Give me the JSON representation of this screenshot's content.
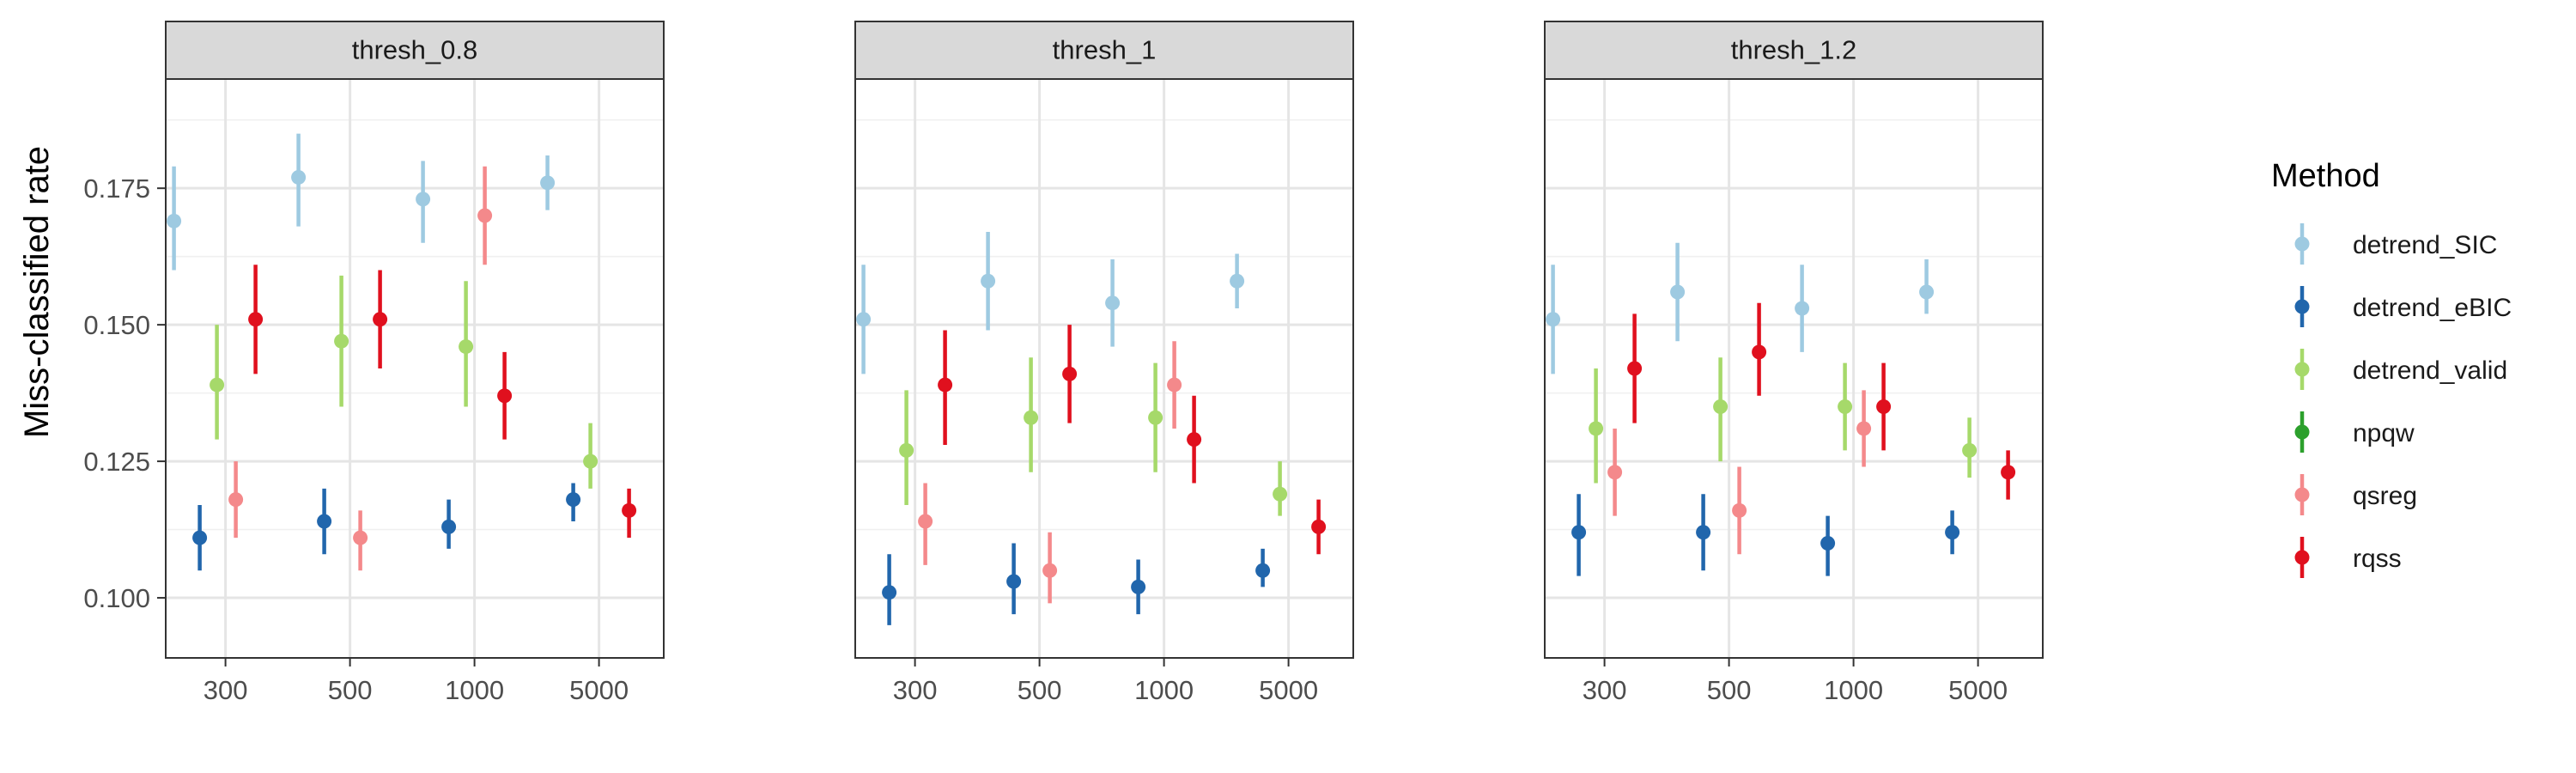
{
  "chart_data": {
    "type": "scatter",
    "subtype": "pointrange",
    "ylabel": "Miss-classified rate",
    "xlabel": "",
    "ylim": [
      0.089,
      0.195
    ],
    "y_ticks": [
      "0.100",
      "0.125",
      "0.150",
      "0.175"
    ],
    "x_categories": [
      "300",
      "500",
      "1000",
      "5000"
    ],
    "grid": true,
    "legend": {
      "title": "Method",
      "position": "right",
      "entries": [
        {
          "key": "detrend_SIC",
          "label": "detrend_SIC",
          "color": "#9ECAE1"
        },
        {
          "key": "detrend_eBIC",
          "label": "detrend_eBIC",
          "color": "#2166AC"
        },
        {
          "key": "detrend_valid",
          "label": "detrend_valid",
          "color": "#A6D96A"
        },
        {
          "key": "npqw",
          "label": "npqw",
          "color": "#2CA02C"
        },
        {
          "key": "qsreg",
          "label": "qsreg",
          "color": "#F4898B"
        },
        {
          "key": "rqss",
          "label": "rqss",
          "color": "#E0101E"
        }
      ]
    },
    "panels": [
      {
        "title": "thresh_0.8",
        "series": [
          {
            "method": "detrend_SIC",
            "values": [
              [
                0.169,
                0.16,
                0.179
              ],
              [
                0.177,
                0.168,
                0.185
              ],
              [
                0.173,
                0.165,
                0.18
              ],
              [
                0.176,
                0.171,
                0.181
              ]
            ]
          },
          {
            "method": "detrend_eBIC",
            "values": [
              [
                0.111,
                0.105,
                0.117
              ],
              [
                0.114,
                0.108,
                0.12
              ],
              [
                0.113,
                0.109,
                0.118
              ],
              [
                0.118,
                0.114,
                0.121
              ]
            ]
          },
          {
            "method": "detrend_valid",
            "values": [
              [
                0.139,
                0.129,
                0.15
              ],
              [
                0.147,
                0.135,
                0.159
              ],
              [
                0.146,
                0.135,
                0.158
              ],
              [
                0.125,
                0.12,
                0.132
              ]
            ]
          },
          {
            "method": "qsreg",
            "values": [
              [
                0.118,
                0.111,
                0.125
              ],
              [
                0.111,
                0.105,
                0.116
              ],
              [
                0.17,
                0.161,
                0.179
              ],
              null
            ]
          },
          {
            "method": "rqss",
            "values": [
              [
                0.151,
                0.141,
                0.161
              ],
              [
                0.151,
                0.142,
                0.16
              ],
              [
                0.137,
                0.129,
                0.145
              ],
              [
                0.116,
                0.111,
                0.12
              ]
            ]
          }
        ]
      },
      {
        "title": "thresh_1",
        "series": [
          {
            "method": "detrend_SIC",
            "values": [
              [
                0.151,
                0.141,
                0.161
              ],
              [
                0.158,
                0.149,
                0.167
              ],
              [
                0.154,
                0.146,
                0.162
              ],
              [
                0.158,
                0.153,
                0.163
              ]
            ]
          },
          {
            "method": "detrend_eBIC",
            "values": [
              [
                0.101,
                0.095,
                0.108
              ],
              [
                0.103,
                0.097,
                0.11
              ],
              [
                0.102,
                0.097,
                0.107
              ],
              [
                0.105,
                0.102,
                0.109
              ]
            ]
          },
          {
            "method": "detrend_valid",
            "values": [
              [
                0.127,
                0.117,
                0.138
              ],
              [
                0.133,
                0.123,
                0.144
              ],
              [
                0.133,
                0.123,
                0.143
              ],
              [
                0.119,
                0.115,
                0.125
              ]
            ]
          },
          {
            "method": "qsreg",
            "values": [
              [
                0.114,
                0.106,
                0.121
              ],
              [
                0.105,
                0.099,
                0.112
              ],
              [
                0.139,
                0.131,
                0.147
              ],
              null
            ]
          },
          {
            "method": "rqss",
            "values": [
              [
                0.139,
                0.128,
                0.149
              ],
              [
                0.141,
                0.132,
                0.15
              ],
              [
                0.129,
                0.121,
                0.137
              ],
              [
                0.113,
                0.108,
                0.118
              ]
            ]
          }
        ]
      },
      {
        "title": "thresh_1.2",
        "series": [
          {
            "method": "detrend_SIC",
            "values": [
              [
                0.151,
                0.141,
                0.161
              ],
              [
                0.156,
                0.147,
                0.165
              ],
              [
                0.153,
                0.145,
                0.161
              ],
              [
                0.156,
                0.152,
                0.162
              ]
            ]
          },
          {
            "method": "detrend_eBIC",
            "values": [
              [
                0.112,
                0.104,
                0.119
              ],
              [
                0.112,
                0.105,
                0.119
              ],
              [
                0.11,
                0.104,
                0.115
              ],
              [
                0.112,
                0.108,
                0.116
              ]
            ]
          },
          {
            "method": "detrend_valid",
            "values": [
              [
                0.131,
                0.121,
                0.142
              ],
              [
                0.135,
                0.125,
                0.144
              ],
              [
                0.135,
                0.127,
                0.143
              ],
              [
                0.127,
                0.122,
                0.133
              ]
            ]
          },
          {
            "method": "qsreg",
            "values": [
              [
                0.123,
                0.115,
                0.131
              ],
              [
                0.116,
                0.108,
                0.124
              ],
              [
                0.131,
                0.124,
                0.138
              ],
              null
            ]
          },
          {
            "method": "rqss",
            "values": [
              [
                0.142,
                0.132,
                0.152
              ],
              [
                0.145,
                0.137,
                0.154
              ],
              [
                0.135,
                0.127,
                0.143
              ],
              [
                0.123,
                0.118,
                0.127
              ]
            ]
          }
        ]
      }
    ]
  }
}
